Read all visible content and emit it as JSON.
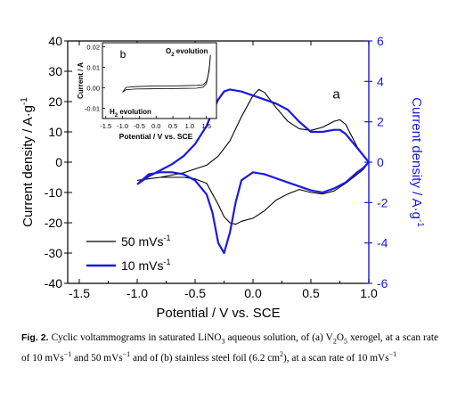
{
  "chart_data": [
    {
      "panel": "a",
      "type": "line",
      "xlabel": "Potential / V vs. SCE",
      "ylabel_left": "Current density / A·g",
      "ylabel_left_sup": "-1",
      "ylabel_right": "Current density / A·g",
      "ylabel_right_sup": "-1",
      "xlim": [
        -1.6,
        1.0
      ],
      "ylim_left": [
        -40,
        40
      ],
      "ylim_right": [
        -6,
        6
      ],
      "xticks": [
        "-1.5",
        "-1.0",
        "-0.5",
        "0.0",
        "0.5",
        "1.0"
      ],
      "yticks_left": [
        "40",
        "30",
        "20",
        "10",
        "0",
        "-10",
        "-20",
        "-30",
        "-40"
      ],
      "yticks_right": [
        "6",
        "4",
        "2",
        "0",
        "-2",
        "-4",
        "-6"
      ],
      "panel_label": "a",
      "left_axis_color": "#000000",
      "right_axis_color": "#1a1adc",
      "series": [
        {
          "name": "50 mVs",
          "name_sup": "-1",
          "axis": "left",
          "color": "#000000",
          "x": [
            -1.0,
            -0.8,
            -0.6,
            -0.4,
            -0.3,
            -0.2,
            -0.1,
            0.0,
            0.05,
            0.1,
            0.2,
            0.3,
            0.4,
            0.5,
            0.6,
            0.7,
            0.75,
            0.8,
            0.9,
            1.0,
            0.95,
            0.9,
            0.8,
            0.7,
            0.6,
            0.5,
            0.4,
            0.3,
            0.2,
            0.1,
            0.0,
            -0.1,
            -0.15,
            -0.2,
            -0.25,
            -0.3,
            -0.4,
            -0.5,
            -0.6,
            -0.7,
            -0.8,
            -0.9,
            -1.0
          ],
          "y": [
            -6.0,
            -5.0,
            -3.5,
            -1.0,
            2.0,
            7.0,
            15.0,
            22.0,
            24.0,
            23.0,
            18.0,
            13.5,
            11.0,
            10.5,
            11.5,
            13.5,
            14.0,
            12.5,
            5.0,
            0.0,
            -2.5,
            -4.0,
            -7.0,
            -9.5,
            -10.5,
            -10.0,
            -9.0,
            -10.5,
            -12.5,
            -16.0,
            -18.5,
            -19.5,
            -20.5,
            -20.0,
            -18.0,
            -14.0,
            -7.0,
            -5.5,
            -5.0,
            -5.0,
            -5.0,
            -5.5,
            -6.0
          ]
        },
        {
          "name": "10 mVs",
          "name_sup": "-1",
          "axis": "right",
          "color": "#1a1adc",
          "x": [
            -1.0,
            -0.9,
            -0.8,
            -0.7,
            -0.6,
            -0.5,
            -0.4,
            -0.35,
            -0.3,
            -0.25,
            -0.2,
            -0.1,
            0.0,
            0.1,
            0.2,
            0.3,
            0.4,
            0.5,
            0.6,
            0.7,
            0.75,
            0.8,
            0.9,
            1.0,
            0.95,
            0.9,
            0.8,
            0.7,
            0.6,
            0.5,
            0.4,
            0.3,
            0.2,
            0.1,
            0.0,
            -0.1,
            -0.15,
            -0.2,
            -0.25,
            -0.3,
            -0.35,
            -0.4,
            -0.5,
            -0.6,
            -0.7,
            -0.8,
            -0.9,
            -1.0
          ],
          "y": [
            -1.1,
            -0.7,
            -0.4,
            -0.1,
            0.3,
            0.9,
            1.8,
            2.5,
            3.1,
            3.5,
            3.6,
            3.5,
            3.3,
            3.1,
            2.9,
            2.6,
            2.0,
            1.5,
            1.5,
            1.6,
            1.6,
            1.4,
            0.7,
            0.0,
            -0.3,
            -0.5,
            -1.0,
            -1.3,
            -1.5,
            -1.4,
            -1.2,
            -1.0,
            -0.8,
            -0.6,
            -0.5,
            -0.9,
            -2.0,
            -3.5,
            -4.5,
            -4.0,
            -2.5,
            -1.6,
            -0.9,
            -0.6,
            -0.5,
            -0.5,
            -0.6,
            -1.1
          ]
        }
      ]
    },
    {
      "panel": "b",
      "type": "line",
      "xlabel": "Potential / V vs. SCE",
      "ylabel": "Current / A",
      "xlim": [
        -1.6,
        1.8
      ],
      "ylim": [
        -0.015,
        0.022
      ],
      "xticks": [
        "-1.5",
        "-1.0",
        "-0.5",
        "0.0",
        "0.5",
        "1.0",
        "1.5"
      ],
      "yticks": [
        "0.02",
        "0.01",
        "0.00",
        "-0.01"
      ],
      "panel_label": "b",
      "annotations": [
        {
          "text": "O",
          "sub": "2",
          "rest": " evolution"
        },
        {
          "text": "H",
          "sub": "2",
          "rest": " evolution"
        }
      ],
      "series": [
        {
          "color": "#000000",
          "x": [
            -1.0,
            -0.9,
            -0.6,
            -0.2,
            0.3,
            0.8,
            1.2,
            1.4,
            1.5,
            1.55,
            1.6,
            1.62
          ],
          "y": [
            -0.0022,
            -0.0009,
            -0.0006,
            -0.0005,
            -0.0004,
            -0.0003,
            -0.0002,
            0.0003,
            0.002,
            0.006,
            0.012,
            0.016
          ]
        },
        {
          "color": "#000000",
          "x": [
            1.62,
            1.58,
            1.5,
            1.4,
            1.2,
            0.8,
            0.3,
            -0.2,
            -0.6,
            -0.9,
            -1.0
          ],
          "y": [
            0.016,
            0.008,
            0.003,
            0.0015,
            0.0012,
            0.001,
            0.0009,
            0.0008,
            0.0006,
            0.0002,
            -0.0022
          ]
        }
      ]
    }
  ],
  "legend": {
    "items": [
      {
        "label": "50 mVs",
        "sup": "-1",
        "color": "#000000"
      },
      {
        "label": "10 mVs",
        "sup": "-1",
        "color": "#1a1adc"
      }
    ]
  },
  "caption": {
    "label": "Fig. 2.",
    "text": " Cyclic voltammograms in saturated LiNO",
    "segments": [
      {
        "t": " Cyclic voltammograms in saturated LiNO"
      },
      {
        "t": "3",
        "sub": true
      },
      {
        "t": " aqueous solution, of (a) V"
      },
      {
        "t": "2",
        "sub": true
      },
      {
        "t": "O"
      },
      {
        "t": "5",
        "sub": true
      },
      {
        "t": " xerogel, at a scan rate of 10 mVs"
      },
      {
        "t": "−1",
        "sup": true
      },
      {
        "t": " and 50 mVs"
      },
      {
        "t": "−1",
        "sup": true
      },
      {
        "t": " and of (b) stainless steel foil (6.2 cm"
      },
      {
        "t": "2",
        "sup": true
      },
      {
        "t": "), at a scan rate of 10 mVs"
      },
      {
        "t": "−1",
        "sup": true
      }
    ]
  }
}
